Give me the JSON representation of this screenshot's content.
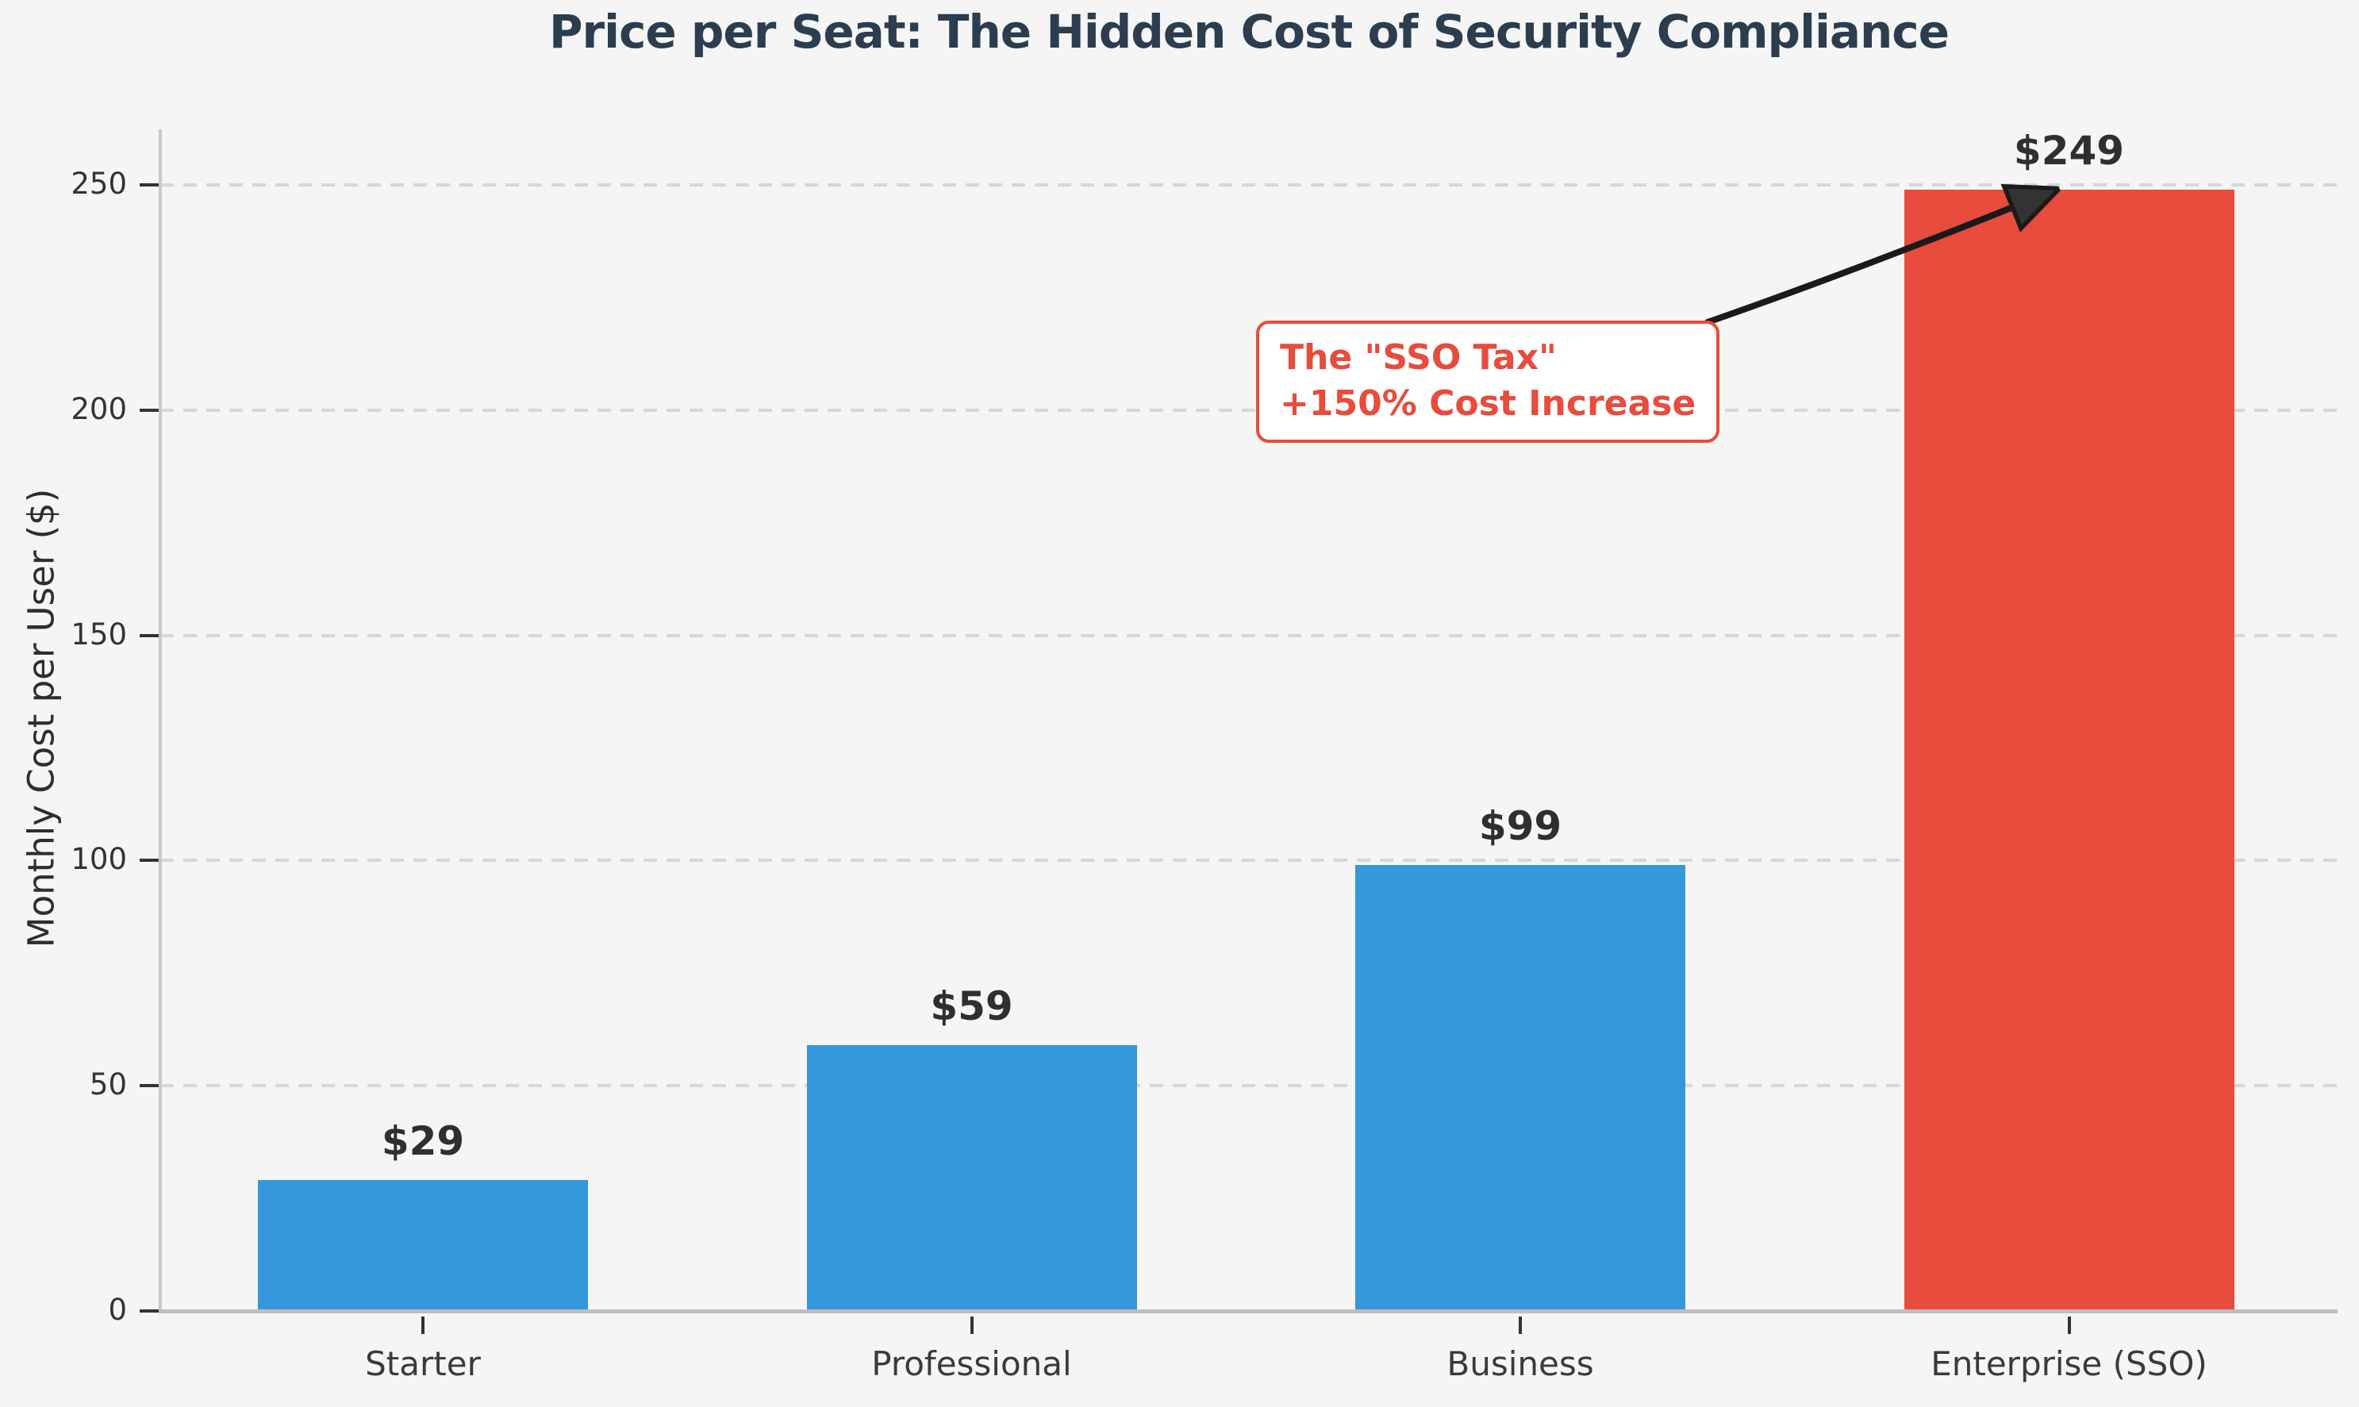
{
  "figure": {
    "background_color": "#f5f5f6"
  },
  "chart_data": {
    "type": "bar",
    "title": "Price per Seat: The Hidden Cost of Security Compliance",
    "title_color": "#2b3d4f",
    "xlabel": "",
    "ylabel": "Monthly Cost per User ($)",
    "categories": [
      "Starter",
      "Professional",
      "Business",
      "Enterprise (SSO)"
    ],
    "values": [
      29,
      59,
      99,
      249
    ],
    "bar_value_labels": [
      "$29",
      "$59",
      "$99",
      "$249"
    ],
    "bar_colors": [
      "#3498db",
      "#3498db",
      "#3498db",
      "#e74c3c"
    ],
    "yticks": [
      0,
      50,
      100,
      150,
      200,
      250
    ],
    "ylim": [
      0,
      262
    ],
    "grid": {
      "axis": "y",
      "style": "dashed",
      "color": "#d7d7da"
    },
    "legend_position": "none",
    "accent_colors": {
      "default_bar": "#3498db",
      "highlight_bar": "#e74c3c",
      "tick_label": "#333333",
      "value_label": "#2f2f2f",
      "arrow": "#1a1a1a"
    },
    "annotation": {
      "text_lines": [
        "The \"SSO Tax\"",
        "+150% Cost Increase"
      ],
      "text_color": "#e74c3c",
      "border_color": "#e74c3c",
      "background": "#ffffff",
      "arrow_color": "#1a1a1a",
      "arrow_head_color": "#333333",
      "points_to": "Enterprise (SSO) bar top"
    }
  }
}
